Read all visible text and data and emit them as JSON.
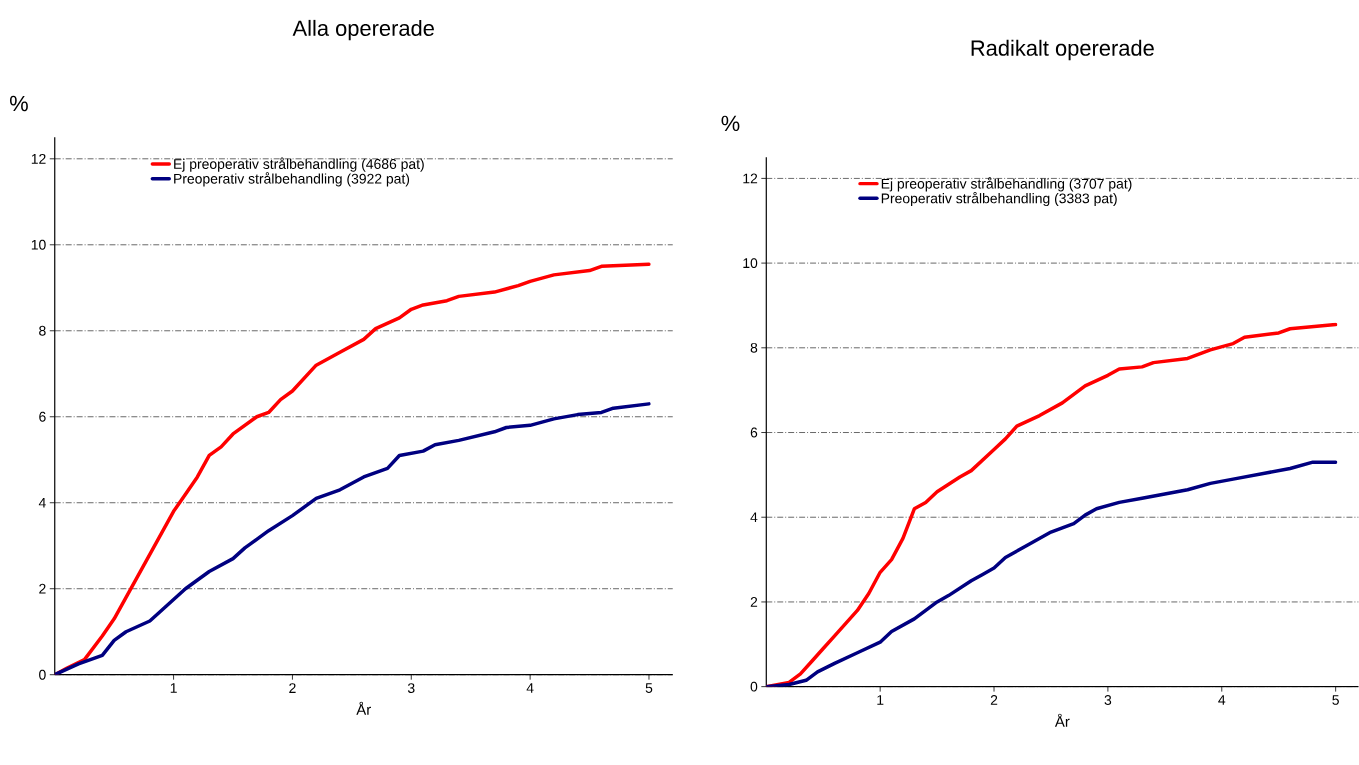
{
  "chart_data": [
    {
      "type": "line",
      "title": "Alla opererade",
      "xlabel": "År",
      "ylabel": "%",
      "legend": "top",
      "grid": "y",
      "xlim": [
        0,
        5.2
      ],
      "ylim": [
        0,
        12.5
      ],
      "xticks": [
        1,
        2,
        3,
        4,
        5
      ],
      "yticks": [
        0,
        2,
        4,
        6,
        8,
        10,
        12
      ],
      "series": [
        {
          "name": "Ej preoperativ strålbehandling (4686 pat)",
          "color": "#ff0000",
          "x": [
            0,
            0.1,
            0.25,
            0.4,
            0.5,
            0.6,
            0.7,
            0.8,
            0.9,
            1.0,
            1.1,
            1.2,
            1.3,
            1.4,
            1.5,
            1.7,
            1.8,
            1.9,
            2.0,
            2.1,
            2.2,
            2.4,
            2.6,
            2.7,
            2.9,
            3.0,
            3.1,
            3.3,
            3.4,
            3.7,
            3.9,
            4.0,
            4.2,
            4.5,
            4.6,
            5.0
          ],
          "values": [
            0,
            0.15,
            0.35,
            0.9,
            1.3,
            1.8,
            2.3,
            2.8,
            3.3,
            3.8,
            4.2,
            4.6,
            5.1,
            5.3,
            5.6,
            6.0,
            6.1,
            6.4,
            6.6,
            6.9,
            7.2,
            7.5,
            7.8,
            8.05,
            8.3,
            8.5,
            8.6,
            8.7,
            8.8,
            8.9,
            9.05,
            9.15,
            9.3,
            9.4,
            9.5,
            9.55
          ]
        },
        {
          "name": "Preoperativ strålbehandling (3922 pat)",
          "color": "#000080",
          "x": [
            0,
            0.2,
            0.4,
            0.5,
            0.6,
            0.8,
            0.9,
            1.0,
            1.1,
            1.3,
            1.5,
            1.6,
            1.8,
            2.0,
            2.1,
            2.2,
            2.4,
            2.6,
            2.7,
            2.8,
            2.9,
            3.1,
            3.2,
            3.4,
            3.7,
            3.8,
            4.0,
            4.2,
            4.4,
            4.6,
            4.7,
            5.0
          ],
          "values": [
            0,
            0.25,
            0.45,
            0.8,
            1.0,
            1.25,
            1.5,
            1.75,
            2.0,
            2.4,
            2.7,
            2.95,
            3.35,
            3.7,
            3.9,
            4.1,
            4.3,
            4.6,
            4.7,
            4.8,
            5.1,
            5.2,
            5.35,
            5.45,
            5.65,
            5.75,
            5.8,
            5.95,
            6.05,
            6.1,
            6.2,
            6.3
          ]
        }
      ]
    },
    {
      "type": "line",
      "title": "Radikalt opererade",
      "xlabel": "År",
      "ylabel": "%",
      "legend": "top",
      "grid": "y",
      "xlim": [
        0,
        5.2
      ],
      "ylim": [
        0,
        12.5
      ],
      "xticks": [
        1,
        2,
        3,
        4,
        5
      ],
      "yticks": [
        0,
        2,
        4,
        6,
        8,
        10,
        12
      ],
      "series": [
        {
          "name": "Ej preoperativ strålbehandling (3707 pat)",
          "color": "#ff0000",
          "x": [
            0,
            0.2,
            0.3,
            0.4,
            0.5,
            0.6,
            0.7,
            0.8,
            0.9,
            1.0,
            1.1,
            1.2,
            1.3,
            1.4,
            1.5,
            1.7,
            1.8,
            2.0,
            2.1,
            2.2,
            2.4,
            2.6,
            2.8,
            3.0,
            3.1,
            3.3,
            3.4,
            3.7,
            3.9,
            4.1,
            4.2,
            4.5,
            4.6,
            5.0
          ],
          "values": [
            0,
            0.1,
            0.3,
            0.6,
            0.9,
            1.2,
            1.5,
            1.8,
            2.2,
            2.7,
            3.0,
            3.5,
            4.2,
            4.35,
            4.6,
            4.95,
            5.1,
            5.6,
            5.85,
            6.15,
            6.4,
            6.7,
            7.1,
            7.35,
            7.5,
            7.55,
            7.65,
            7.75,
            7.95,
            8.1,
            8.25,
            8.35,
            8.45,
            8.55
          ]
        },
        {
          "name": "Preoperativ strålbehandling (3383 pat)",
          "color": "#000080",
          "x": [
            0,
            0.2,
            0.35,
            0.45,
            0.6,
            0.8,
            1.0,
            1.1,
            1.3,
            1.5,
            1.6,
            1.8,
            1.9,
            2.0,
            2.1,
            2.3,
            2.5,
            2.7,
            2.8,
            2.9,
            3.1,
            3.3,
            3.5,
            3.7,
            3.9,
            4.1,
            4.4,
            4.6,
            4.8,
            5.0
          ],
          "values": [
            0,
            0.05,
            0.15,
            0.35,
            0.55,
            0.8,
            1.05,
            1.3,
            1.6,
            2.0,
            2.15,
            2.5,
            2.65,
            2.8,
            3.05,
            3.35,
            3.65,
            3.85,
            4.05,
            4.2,
            4.35,
            4.45,
            4.55,
            4.65,
            4.8,
            4.9,
            5.05,
            5.15,
            5.3,
            5.3
          ]
        }
      ]
    }
  ]
}
